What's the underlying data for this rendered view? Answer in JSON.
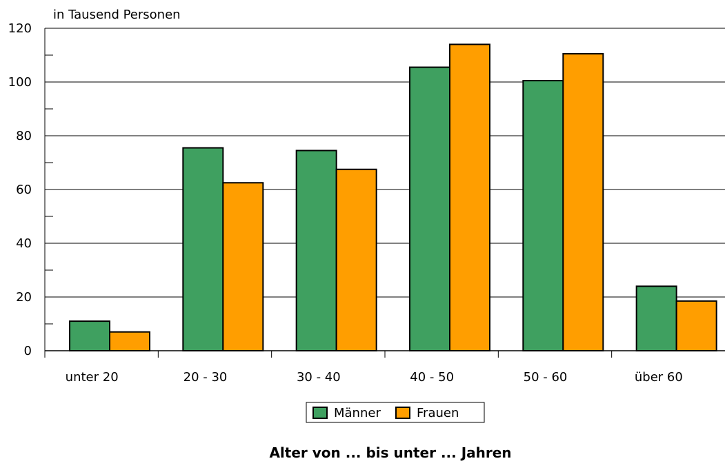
{
  "chart_data": {
    "type": "bar",
    "title": "",
    "ylabel": "in Tausend Personen",
    "xlabel": "Alter von ... bis unter ... Jahren",
    "categories": [
      "unter 20",
      "20 - 30",
      "30 - 40",
      "40 - 50",
      "50 - 60",
      "über 60"
    ],
    "series": [
      {
        "name": "Männer",
        "color": "#3fa060",
        "values": [
          11,
          75.5,
          74.5,
          105.5,
          100.5,
          24
        ]
      },
      {
        "name": "Frauen",
        "color": "#ff9e00",
        "values": [
          7,
          62.5,
          67.5,
          114,
          110.5,
          18.5
        ]
      }
    ],
    "ylim": [
      0,
      120
    ],
    "yticks": [
      0,
      20,
      40,
      60,
      80,
      100,
      120
    ],
    "grid": true,
    "legend": "bottom-center"
  }
}
